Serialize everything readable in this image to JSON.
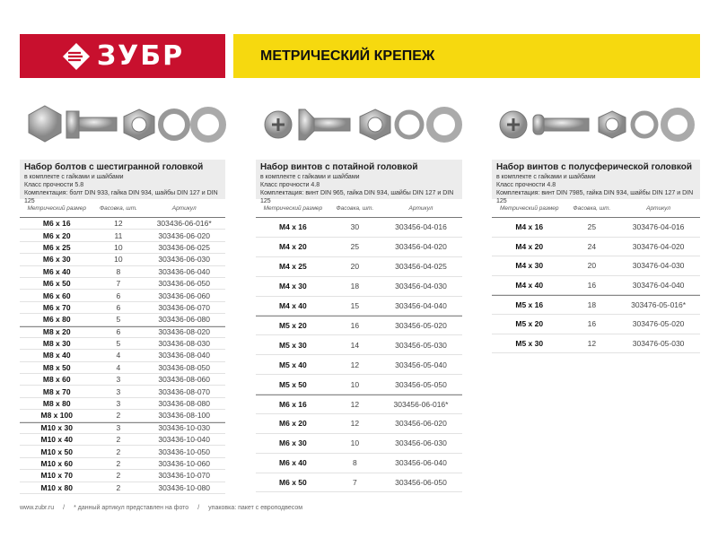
{
  "brand": {
    "logo": "ЗУБР",
    "color": "#c8102e"
  },
  "header": {
    "title": "МЕТРИЧЕСКИЙ КРЕПЕЖ",
    "color": "#f6d90f"
  },
  "columns": {
    "size": "Метрический размер",
    "qty": "Фасовка, шт.",
    "sku": "Артикул"
  },
  "panels": [
    {
      "title": "Набор болтов с шестигранной головкой",
      "line1": "в комплекте с гайками и шайбами",
      "line2": "Класс прочности 5.8",
      "line3": "Комплектация: болт DIN 933, гайка DIN 934, шайбы DIN 127 и DIN 125",
      "rows": [
        {
          "size": "M6 x 16",
          "qty": "12",
          "sku": "303436-06-016*"
        },
        {
          "size": "M6 x 20",
          "qty": "11",
          "sku": "303436-06-020"
        },
        {
          "size": "M6 x 25",
          "qty": "10",
          "sku": "303436-06-025"
        },
        {
          "size": "M6 x 30",
          "qty": "10",
          "sku": "303436-06-030"
        },
        {
          "size": "M6 x 40",
          "qty": "8",
          "sku": "303436-06-040"
        },
        {
          "size": "M6 x 50",
          "qty": "7",
          "sku": "303436-06-050"
        },
        {
          "size": "M6 x 60",
          "qty": "6",
          "sku": "303436-06-060"
        },
        {
          "size": "M6 x 70",
          "qty": "6",
          "sku": "303436-06-070"
        },
        {
          "size": "M6 x 80",
          "qty": "5",
          "sku": "303436-06-080"
        },
        {
          "size": "M8 x 20",
          "qty": "6",
          "sku": "303436-08-020",
          "sep": true
        },
        {
          "size": "M8 x 30",
          "qty": "5",
          "sku": "303436-08-030"
        },
        {
          "size": "M8 x 40",
          "qty": "4",
          "sku": "303436-08-040"
        },
        {
          "size": "M8 x 50",
          "qty": "4",
          "sku": "303436-08-050"
        },
        {
          "size": "M8 x 60",
          "qty": "3",
          "sku": "303436-08-060"
        },
        {
          "size": "M8 x 70",
          "qty": "3",
          "sku": "303436-08-070"
        },
        {
          "size": "M8 x 80",
          "qty": "3",
          "sku": "303436-08-080"
        },
        {
          "size": "M8 x 100",
          "qty": "2",
          "sku": "303436-08-100"
        },
        {
          "size": "M10 x 30",
          "qty": "3",
          "sku": "303436-10-030",
          "sep": true
        },
        {
          "size": "M10 x 40",
          "qty": "2",
          "sku": "303436-10-040"
        },
        {
          "size": "M10 x 50",
          "qty": "2",
          "sku": "303436-10-050"
        },
        {
          "size": "M10 x 60",
          "qty": "2",
          "sku": "303436-10-060"
        },
        {
          "size": "M10 x 70",
          "qty": "2",
          "sku": "303436-10-070"
        },
        {
          "size": "M10 x 80",
          "qty": "2",
          "sku": "303436-10-080"
        }
      ]
    },
    {
      "title": "Набор винтов с потайной головкой",
      "line1": "в комплекте с гайками и шайбами",
      "line2": "Класс прочности 4.8",
      "line3": "Комплектация: винт DIN 965, гайка DIN 934, шайбы DIN 127 и DIN 125",
      "rows": [
        {
          "size": "M4 x 16",
          "qty": "30",
          "sku": "303456-04-016"
        },
        {
          "size": "M4 x 20",
          "qty": "25",
          "sku": "303456-04-020"
        },
        {
          "size": "M4 x 25",
          "qty": "20",
          "sku": "303456-04-025"
        },
        {
          "size": "M4 x 30",
          "qty": "18",
          "sku": "303456-04-030"
        },
        {
          "size": "M4 x 40",
          "qty": "15",
          "sku": "303456-04-040"
        },
        {
          "size": "M5 x 20",
          "qty": "16",
          "sku": "303456-05-020",
          "sep": true
        },
        {
          "size": "M5 x 30",
          "qty": "14",
          "sku": "303456-05-030"
        },
        {
          "size": "M5 x 40",
          "qty": "12",
          "sku": "303456-05-040"
        },
        {
          "size": "M5 x 50",
          "qty": "10",
          "sku": "303456-05-050"
        },
        {
          "size": "M6 x 16",
          "qty": "12",
          "sku": "303456-06-016*",
          "sep": true
        },
        {
          "size": "M6 x 20",
          "qty": "12",
          "sku": "303456-06-020"
        },
        {
          "size": "M6 x 30",
          "qty": "10",
          "sku": "303456-06-030"
        },
        {
          "size": "M6 x 40",
          "qty": "8",
          "sku": "303456-06-040"
        },
        {
          "size": "M6 x 50",
          "qty": "7",
          "sku": "303456-06-050"
        }
      ]
    },
    {
      "title": "Набор винтов с полусферической головкой",
      "line1": "в комплекте с гайками и шайбами",
      "line2": "Класс прочности 4.8",
      "line3": "Комплектация: винт DIN 7985, гайка DIN 934, шайбы DIN 127 и DIN 125",
      "rows": [
        {
          "size": "M4 x 16",
          "qty": "25",
          "sku": "303476-04-016"
        },
        {
          "size": "M4 x 20",
          "qty": "24",
          "sku": "303476-04-020"
        },
        {
          "size": "M4 x 30",
          "qty": "20",
          "sku": "303476-04-030"
        },
        {
          "size": "M4 x 40",
          "qty": "16",
          "sku": "303476-04-040"
        },
        {
          "size": "M5 x 16",
          "qty": "18",
          "sku": "303476-05-016*",
          "sep": true
        },
        {
          "size": "M5 x 20",
          "qty": "16",
          "sku": "303476-05-020"
        },
        {
          "size": "M5 x 30",
          "qty": "12",
          "sku": "303476-05-030"
        }
      ]
    }
  ],
  "footer": {
    "site": "www.zubr.ru",
    "sep": "/",
    "note": "* данный артикул представлен на фото",
    "packaging": "упаковка: пакет с европодвесом"
  }
}
